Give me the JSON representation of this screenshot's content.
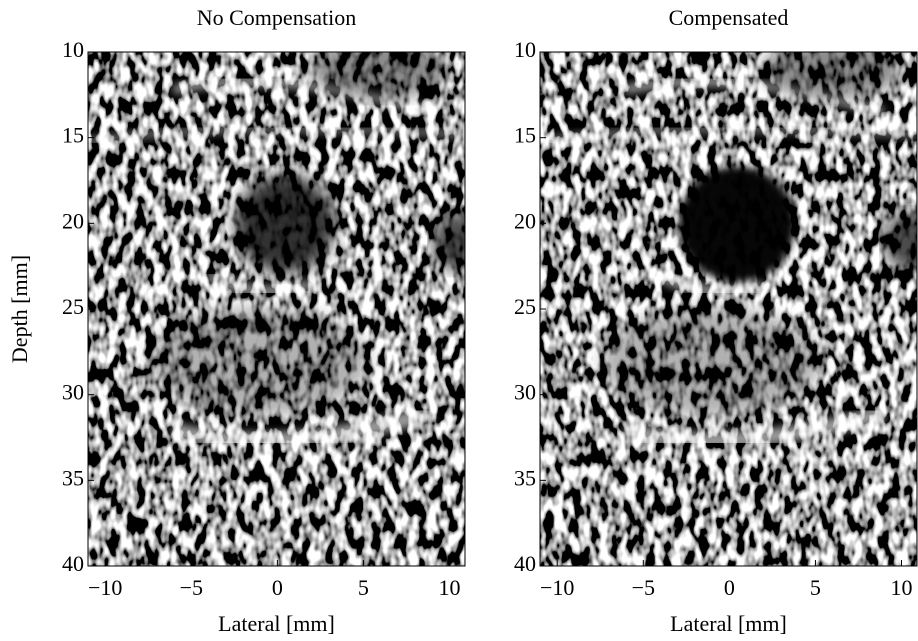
{
  "chart_data": [
    {
      "type": "image",
      "title": "No Compensation",
      "xlabel": "Lateral [mm]",
      "ylabel": "Depth [mm]",
      "xlim": [
        -11,
        10.9
      ],
      "ylim": [
        10,
        40
      ],
      "xticks": [
        {
          "value": -10,
          "label": "−10"
        },
        {
          "value": -5,
          "label": "−5"
        },
        0,
        5,
        10
      ],
      "yticks": [
        10,
        15,
        20,
        25,
        30,
        35,
        40
      ]
    },
    {
      "type": "image",
      "title": "Compensated",
      "xlabel": "Lateral [mm]",
      "xlim": [
        -11,
        10.9
      ],
      "ylim": [
        10,
        40
      ],
      "xticks": [
        {
          "value": -10,
          "label": "−10"
        },
        {
          "value": -5,
          "label": "−5"
        },
        0,
        5,
        10
      ],
      "yticks": [
        10,
        15,
        20,
        25,
        30,
        35,
        40
      ]
    }
  ]
}
